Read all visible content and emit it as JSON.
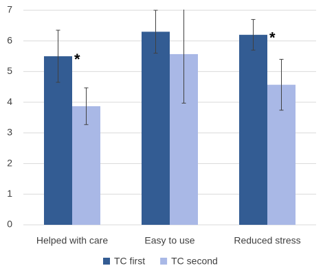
{
  "chart_data": {
    "type": "bar",
    "categories": [
      "Helped with care",
      "Easy to use",
      "Reduced stress"
    ],
    "series": [
      {
        "name": "TC first",
        "color": "#335c93",
        "values": [
          5.5,
          6.3,
          6.2
        ],
        "errors": [
          0.85,
          0.7,
          0.5
        ],
        "annotations": [
          "*",
          null,
          "*"
        ]
      },
      {
        "name": "TC second",
        "color": "#a9b8e6",
        "values": [
          3.87,
          5.57,
          4.57
        ],
        "errors": [
          0.6,
          1.6,
          0.83
        ],
        "annotations": [
          null,
          null,
          null
        ]
      }
    ],
    "ylim": [
      0,
      7
    ],
    "yticks": [
      0,
      1,
      2,
      3,
      4,
      5,
      6,
      7
    ],
    "grid": true,
    "legend": "bottom"
  }
}
